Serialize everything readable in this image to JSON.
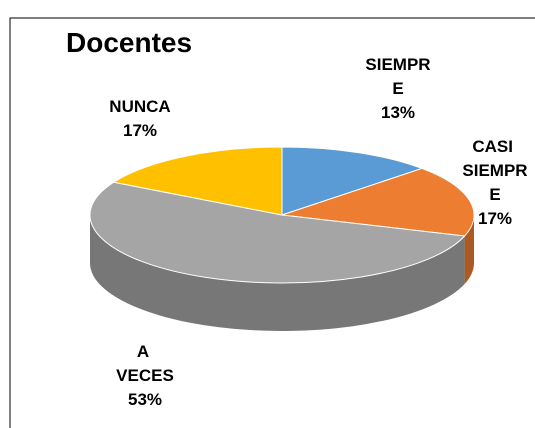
{
  "chart_data": {
    "type": "pie",
    "title": "Docentes",
    "categories": [
      "SIEMPRE",
      "CASI SIEMPRE",
      "A VECES",
      "NUNCA"
    ],
    "values": [
      13,
      17,
      53,
      17
    ],
    "value_labels": [
      "13%",
      "17%",
      "53%",
      "17%"
    ],
    "colors": [
      "#5b9bd5",
      "#ed7d31",
      "#a5a5a5",
      "#ffc000"
    ]
  }
}
